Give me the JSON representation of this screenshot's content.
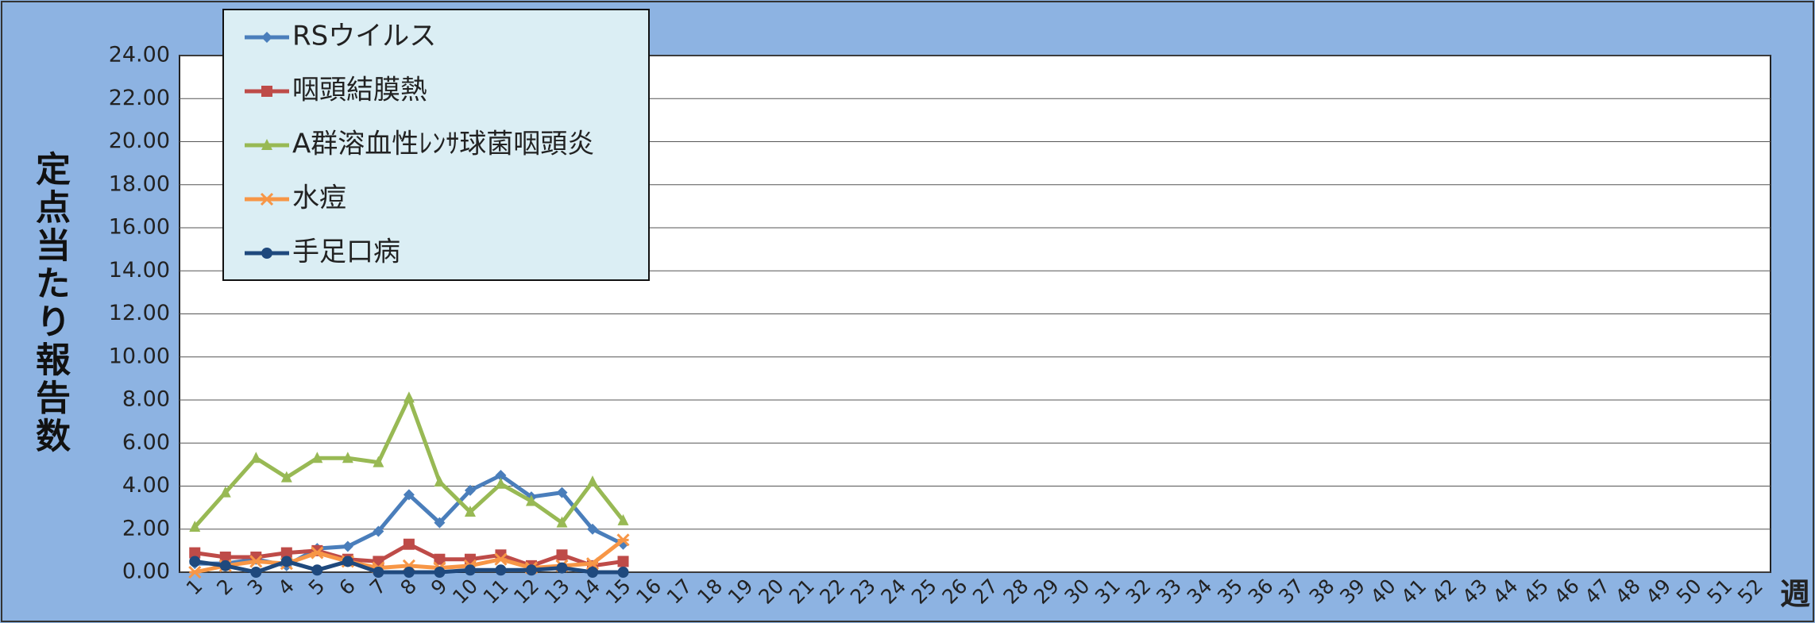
{
  "chart_data": {
    "type": "line",
    "ylabel": "定点当たり報告数",
    "xlabel": "週",
    "categories": [
      "1",
      "2",
      "3",
      "4",
      "5",
      "6",
      "7",
      "8",
      "9",
      "10",
      "11",
      "12",
      "13",
      "14",
      "15",
      "16",
      "17",
      "18",
      "19",
      "20",
      "21",
      "22",
      "23",
      "24",
      "25",
      "26",
      "27",
      "28",
      "29",
      "30",
      "31",
      "32",
      "33",
      "34",
      "35",
      "36",
      "37",
      "38",
      "39",
      "40",
      "41",
      "42",
      "43",
      "44",
      "45",
      "46",
      "47",
      "48",
      "49",
      "50",
      "51",
      "52"
    ],
    "ylim": [
      0,
      24
    ],
    "yticks": [
      {
        "value": 0,
        "label": "0.00"
      },
      {
        "value": 2,
        "label": "2.00"
      },
      {
        "value": 4,
        "label": "4.00"
      },
      {
        "value": 6,
        "label": "6.00"
      },
      {
        "value": 8,
        "label": "8.00"
      },
      {
        "value": 10,
        "label": "10.00"
      },
      {
        "value": 12,
        "label": "12.00"
      },
      {
        "value": 14,
        "label": "14.00"
      },
      {
        "value": 16,
        "label": "16.00"
      },
      {
        "value": 18,
        "label": "18.00"
      },
      {
        "value": 20,
        "label": "20.00"
      },
      {
        "value": 22,
        "label": "22.00"
      },
      {
        "value": 24,
        "label": "24.00"
      }
    ],
    "grid": true,
    "series": [
      {
        "name": "RSウイルス",
        "color": "#4a7ebb",
        "marker": "diamond",
        "values": [
          0.4,
          0.4,
          0.6,
          0.3,
          1.1,
          1.2,
          1.9,
          3.6,
          2.3,
          3.8,
          4.5,
          3.5,
          3.7,
          2.0,
          1.3,
          null,
          null,
          null,
          null,
          null,
          null,
          null,
          null,
          null,
          null,
          null,
          null,
          null,
          null,
          null,
          null,
          null,
          null,
          null,
          null,
          null,
          null,
          null,
          null,
          null,
          null,
          null,
          null,
          null,
          null,
          null,
          null,
          null,
          null,
          null,
          null,
          null
        ]
      },
      {
        "name": "咽頭結膜熱",
        "color": "#be4b48",
        "marker": "square",
        "values": [
          0.9,
          0.7,
          0.7,
          0.9,
          1.0,
          0.6,
          0.5,
          1.3,
          0.6,
          0.6,
          0.8,
          0.3,
          0.8,
          0.3,
          0.5,
          null,
          null,
          null,
          null,
          null,
          null,
          null,
          null,
          null,
          null,
          null,
          null,
          null,
          null,
          null,
          null,
          null,
          null,
          null,
          null,
          null,
          null,
          null,
          null,
          null,
          null,
          null,
          null,
          null,
          null,
          null,
          null,
          null,
          null,
          null,
          null,
          null
        ]
      },
      {
        "name": "A群溶血性ﾚﾝｻ球菌咽頭炎",
        "color": "#98b954",
        "marker": "triangle",
        "values": [
          2.1,
          3.7,
          5.3,
          4.4,
          5.3,
          5.3,
          5.1,
          8.1,
          4.2,
          2.8,
          4.1,
          3.3,
          2.3,
          4.2,
          2.4,
          null,
          null,
          null,
          null,
          null,
          null,
          null,
          null,
          null,
          null,
          null,
          null,
          null,
          null,
          null,
          null,
          null,
          null,
          null,
          null,
          null,
          null,
          null,
          null,
          null,
          null,
          null,
          null,
          null,
          null,
          null,
          null,
          null,
          null,
          null,
          null,
          null
        ]
      },
      {
        "name": "水痘",
        "color": "#f79646",
        "marker": "cross",
        "values": [
          0.0,
          0.3,
          0.5,
          0.4,
          0.9,
          0.5,
          0.2,
          0.3,
          0.2,
          0.3,
          0.6,
          0.2,
          0.3,
          0.4,
          1.5,
          null,
          null,
          null,
          null,
          null,
          null,
          null,
          null,
          null,
          null,
          null,
          null,
          null,
          null,
          null,
          null,
          null,
          null,
          null,
          null,
          null,
          null,
          null,
          null,
          null,
          null,
          null,
          null,
          null,
          null,
          null,
          null,
          null,
          null,
          null,
          null,
          null
        ]
      },
      {
        "name": "手足口病",
        "color": "#1f497d",
        "marker": "circle",
        "values": [
          0.5,
          0.3,
          0.0,
          0.5,
          0.1,
          0.5,
          0.0,
          0.0,
          0.0,
          0.1,
          0.1,
          0.1,
          0.2,
          0.0,
          0.0,
          null,
          null,
          null,
          null,
          null,
          null,
          null,
          null,
          null,
          null,
          null,
          null,
          null,
          null,
          null,
          null,
          null,
          null,
          null,
          null,
          null,
          null,
          null,
          null,
          null,
          null,
          null,
          null,
          null,
          null,
          null,
          null,
          null,
          null,
          null,
          null,
          null
        ]
      }
    ]
  }
}
